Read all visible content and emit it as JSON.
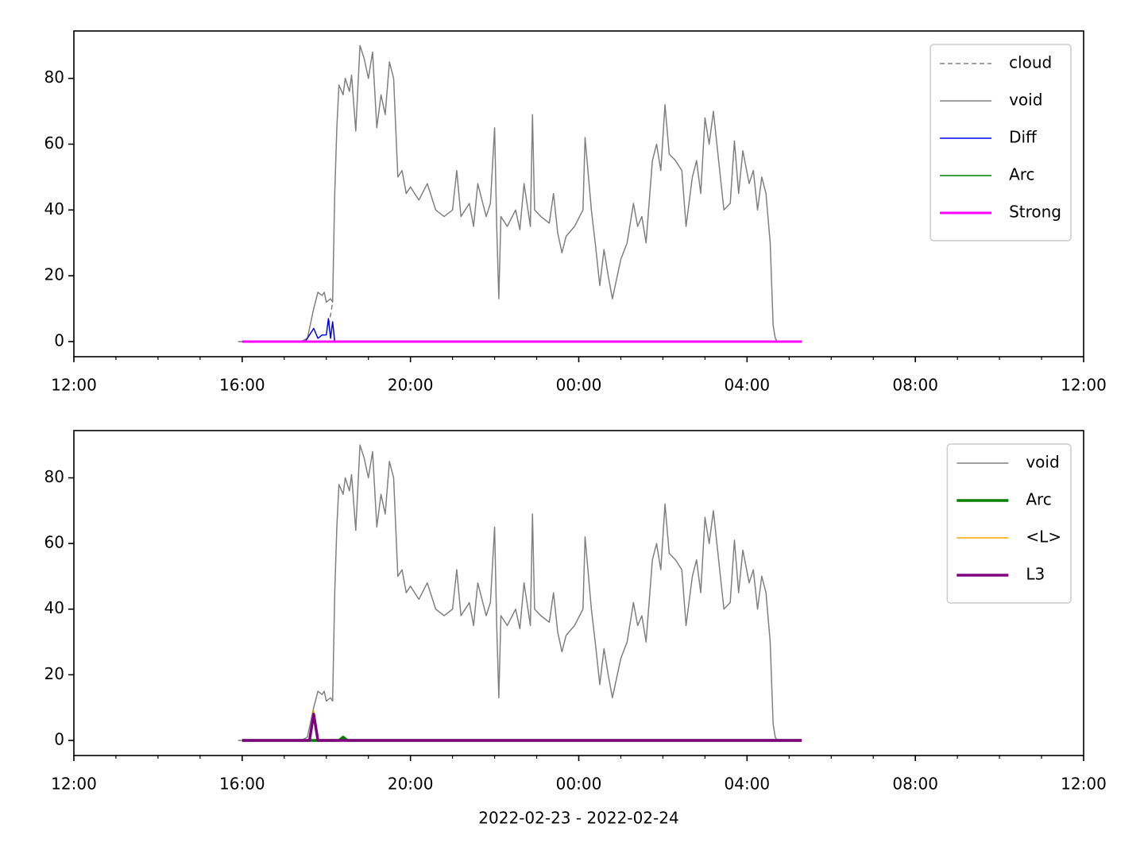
{
  "chart_data": [
    {
      "type": "line",
      "xlim": [
        12,
        36
      ],
      "ylim": [
        -4.6,
        94.4
      ],
      "xticks": [
        {
          "value": 12,
          "label": "12:00"
        },
        {
          "value": 16,
          "label": "16:00"
        },
        {
          "value": 20,
          "label": "20:00"
        },
        {
          "value": 24,
          "label": "00:00"
        },
        {
          "value": 28,
          "label": "04:00"
        },
        {
          "value": 32,
          "label": "08:00"
        },
        {
          "value": 36,
          "label": "12:00"
        }
      ],
      "xminorticks": [
        13,
        14,
        15,
        17,
        18,
        19,
        21,
        22,
        23,
        25,
        26,
        27,
        29,
        30,
        31,
        33,
        34,
        35
      ],
      "yticks": [
        0,
        20,
        40,
        60,
        80
      ],
      "legend": "upper right",
      "series": [
        {
          "name": "cloud",
          "color": "#808080",
          "dash": true,
          "width": 1.5,
          "x": [
            18.05,
            18.1,
            18.15
          ],
          "values": [
            5,
            8,
            12
          ]
        },
        {
          "name": "void",
          "color": "#808080",
          "width": 1.5,
          "x": [
            15.9,
            17.4,
            17.55,
            17.7,
            17.8,
            17.9,
            17.95,
            18.0,
            18.1,
            18.15,
            18.2,
            18.25,
            18.3,
            18.4,
            18.45,
            18.55,
            18.6,
            18.7,
            18.8,
            18.9,
            19.0,
            19.1,
            19.2,
            19.3,
            19.4,
            19.5,
            19.6,
            19.7,
            19.8,
            19.9,
            20.0,
            20.2,
            20.4,
            20.6,
            20.8,
            21.0,
            21.1,
            21.2,
            21.4,
            21.5,
            21.6,
            21.8,
            21.9,
            22.0,
            22.05,
            22.1,
            22.15,
            22.3,
            22.5,
            22.6,
            22.7,
            22.85,
            22.9,
            22.95,
            23.1,
            23.3,
            23.4,
            23.5,
            23.6,
            23.7,
            23.9,
            24.1,
            24.15,
            24.3,
            24.4,
            24.5,
            24.6,
            24.7,
            24.8,
            25.0,
            25.15,
            25.3,
            25.4,
            25.5,
            25.6,
            25.75,
            25.85,
            25.95,
            26.05,
            26.15,
            26.3,
            26.45,
            26.55,
            26.7,
            26.8,
            26.9,
            27.0,
            27.1,
            27.2,
            27.35,
            27.45,
            27.6,
            27.7,
            27.8,
            27.9,
            28.05,
            28.15,
            28.25,
            28.35,
            28.45,
            28.55,
            28.62,
            28.67,
            28.72
          ],
          "values": [
            0,
            0,
            1,
            10,
            15,
            14,
            15,
            12,
            13,
            12,
            45,
            65,
            78,
            75,
            80,
            76,
            81,
            64,
            90,
            86,
            80,
            88,
            65,
            75,
            69,
            85,
            80,
            50,
            52,
            45,
            47,
            43,
            48,
            40,
            38,
            40,
            52,
            38,
            42,
            35,
            48,
            38,
            42,
            65,
            35,
            13,
            38,
            35,
            40,
            34,
            48,
            35,
            69,
            40,
            38,
            36,
            45,
            33,
            27,
            32,
            35,
            40,
            62,
            40,
            29,
            17,
            28,
            20,
            13,
            25,
            30,
            42,
            35,
            38,
            30,
            55,
            60,
            52,
            72,
            57,
            55,
            52,
            35,
            50,
            55,
            45,
            68,
            60,
            70,
            52,
            40,
            42,
            61,
            45,
            58,
            48,
            52,
            40,
            50,
            45,
            30,
            5,
            1,
            0
          ]
        },
        {
          "name": "Diff",
          "color": "#0000ff",
          "width": 1.5,
          "x": [
            16,
            17.5,
            17.7,
            17.8,
            17.9,
            18.0,
            18.05,
            18.1,
            18.15,
            18.2,
            29.3
          ],
          "values": [
            0,
            0,
            4,
            1,
            2,
            2,
            7,
            1,
            6,
            0,
            0
          ]
        },
        {
          "name": "Arc",
          "color": "#008000",
          "width": 1.5,
          "x": [
            16,
            29.3
          ],
          "values": [
            0,
            0
          ]
        },
        {
          "name": "Strong",
          "color": "#ff00ff",
          "width": 3,
          "x": [
            16,
            29.3
          ],
          "values": [
            0,
            0
          ]
        }
      ]
    },
    {
      "type": "line",
      "xlabel": "2022-02-23 - 2022-02-24",
      "xlim": [
        12,
        36
      ],
      "ylim": [
        -4.6,
        94.4
      ],
      "xticks": [
        {
          "value": 12,
          "label": "12:00"
        },
        {
          "value": 16,
          "label": "16:00"
        },
        {
          "value": 20,
          "label": "20:00"
        },
        {
          "value": 24,
          "label": "00:00"
        },
        {
          "value": 28,
          "label": "04:00"
        },
        {
          "value": 32,
          "label": "08:00"
        },
        {
          "value": 36,
          "label": "12:00"
        }
      ],
      "xminorticks": [
        13,
        14,
        15,
        17,
        18,
        19,
        21,
        22,
        23,
        25,
        26,
        27,
        29,
        30,
        31,
        33,
        34,
        35
      ],
      "yticks": [
        0,
        20,
        40,
        60,
        80
      ],
      "legend": "upper right",
      "series": [
        {
          "name": "void",
          "color": "#808080",
          "width": 1.5,
          "x": [
            15.9,
            17.4,
            17.55,
            17.7,
            17.8,
            17.9,
            17.95,
            18.0,
            18.1,
            18.15,
            18.2,
            18.25,
            18.3,
            18.4,
            18.45,
            18.55,
            18.6,
            18.7,
            18.8,
            18.9,
            19.0,
            19.1,
            19.2,
            19.3,
            19.4,
            19.5,
            19.6,
            19.7,
            19.8,
            19.9,
            20.0,
            20.2,
            20.4,
            20.6,
            20.8,
            21.0,
            21.1,
            21.2,
            21.4,
            21.5,
            21.6,
            21.8,
            21.9,
            22.0,
            22.05,
            22.1,
            22.15,
            22.3,
            22.5,
            22.6,
            22.7,
            22.85,
            22.9,
            22.95,
            23.1,
            23.3,
            23.4,
            23.5,
            23.6,
            23.7,
            23.9,
            24.1,
            24.15,
            24.3,
            24.4,
            24.5,
            24.6,
            24.7,
            24.8,
            25.0,
            25.15,
            25.3,
            25.4,
            25.5,
            25.6,
            25.75,
            25.85,
            25.95,
            26.05,
            26.15,
            26.3,
            26.45,
            26.55,
            26.7,
            26.8,
            26.9,
            27.0,
            27.1,
            27.2,
            27.35,
            27.45,
            27.6,
            27.7,
            27.8,
            27.9,
            28.05,
            28.15,
            28.25,
            28.35,
            28.45,
            28.55,
            28.62,
            28.67,
            28.72
          ],
          "values": [
            0,
            0,
            1,
            10,
            15,
            14,
            15,
            12,
            13,
            12,
            45,
            65,
            78,
            75,
            80,
            76,
            81,
            64,
            90,
            86,
            80,
            88,
            65,
            75,
            69,
            85,
            80,
            50,
            52,
            45,
            47,
            43,
            48,
            40,
            38,
            40,
            52,
            38,
            42,
            35,
            48,
            38,
            42,
            65,
            35,
            13,
            38,
            35,
            40,
            34,
            48,
            35,
            69,
            40,
            38,
            36,
            45,
            33,
            27,
            32,
            35,
            40,
            62,
            40,
            29,
            17,
            28,
            20,
            13,
            25,
            30,
            42,
            35,
            38,
            30,
            55,
            60,
            52,
            72,
            57,
            55,
            52,
            35,
            50,
            55,
            45,
            68,
            60,
            70,
            52,
            40,
            42,
            61,
            45,
            58,
            48,
            52,
            40,
            50,
            45,
            30,
            5,
            1,
            0
          ]
        },
        {
          "name": "Arc",
          "color": "#008000",
          "width": 3.5,
          "x": [
            16,
            18.3,
            18.4,
            18.5,
            29.3
          ],
          "values": [
            0,
            0,
            1,
            0,
            0
          ]
        },
        {
          "name": "<L>",
          "color": "#ffa500",
          "width": 1.5,
          "x": [
            16,
            17.6,
            17.7,
            17.8,
            29.3
          ],
          "values": [
            0,
            0,
            9,
            0,
            0
          ]
        },
        {
          "name": "L3",
          "color": "#800080",
          "width": 3.5,
          "x": [
            16,
            17.6,
            17.7,
            17.8,
            29.3
          ],
          "values": [
            0,
            0,
            8,
            0,
            0
          ]
        }
      ]
    }
  ]
}
